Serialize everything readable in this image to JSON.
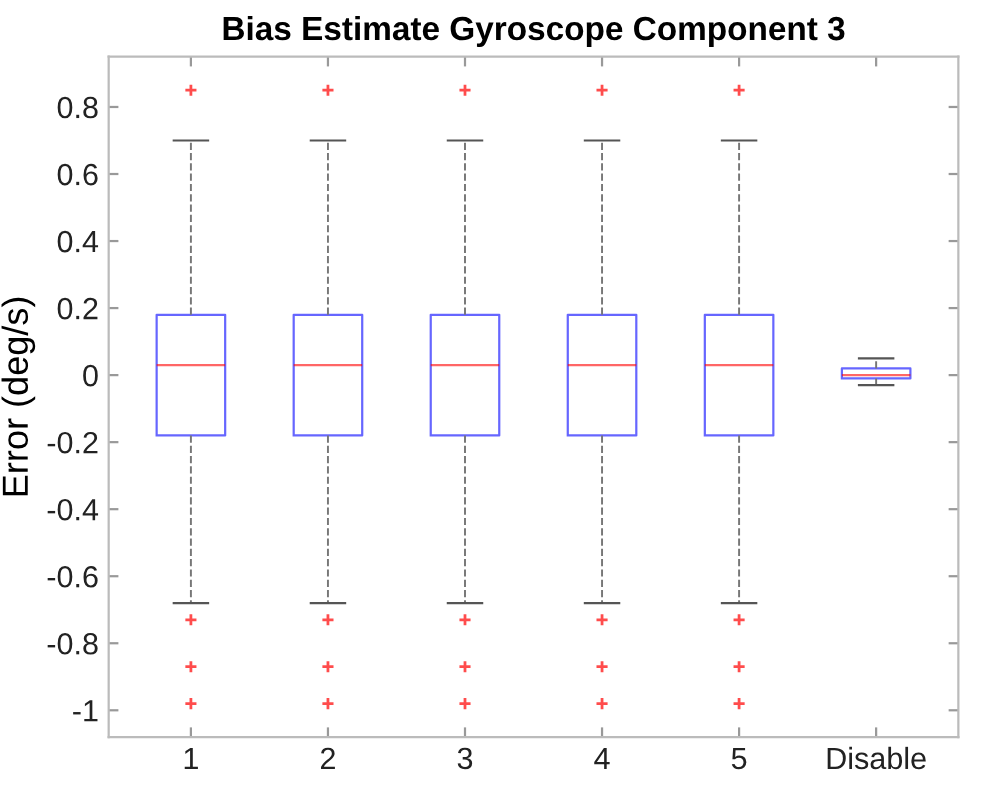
{
  "chart_data": {
    "type": "box",
    "title": "Bias Estimate Gyroscope Component 3",
    "ylabel": "Error (deg/s)",
    "categories": [
      "1",
      "2",
      "3",
      "4",
      "5",
      "Disable"
    ],
    "boxes": [
      {
        "low": -0.68,
        "q1": -0.18,
        "median": 0.03,
        "q3": 0.18,
        "high": 0.7,
        "outliers": [
          0.85,
          -0.73,
          -0.87,
          -0.98
        ]
      },
      {
        "low": -0.68,
        "q1": -0.18,
        "median": 0.03,
        "q3": 0.18,
        "high": 0.7,
        "outliers": [
          0.85,
          -0.73,
          -0.87,
          -0.98
        ]
      },
      {
        "low": -0.68,
        "q1": -0.18,
        "median": 0.03,
        "q3": 0.18,
        "high": 0.7,
        "outliers": [
          0.85,
          -0.73,
          -0.87,
          -0.98
        ]
      },
      {
        "low": -0.68,
        "q1": -0.18,
        "median": 0.03,
        "q3": 0.18,
        "high": 0.7,
        "outliers": [
          0.85,
          -0.73,
          -0.87,
          -0.98
        ]
      },
      {
        "low": -0.68,
        "q1": -0.18,
        "median": 0.03,
        "q3": 0.18,
        "high": 0.7,
        "outliers": [
          0.85,
          -0.73,
          -0.87,
          -0.98
        ]
      },
      {
        "low": -0.03,
        "q1": -0.01,
        "median": 0.0,
        "q3": 0.02,
        "high": 0.05
      }
    ],
    "color": "#0000ff",
    "ylim": [
      -1.08,
      0.95
    ],
    "yticks": [
      -1,
      -0.8,
      -0.6,
      -0.4,
      -0.2,
      0,
      0.2,
      0.4,
      0.6,
      0.8
    ],
    "grid": false
  }
}
